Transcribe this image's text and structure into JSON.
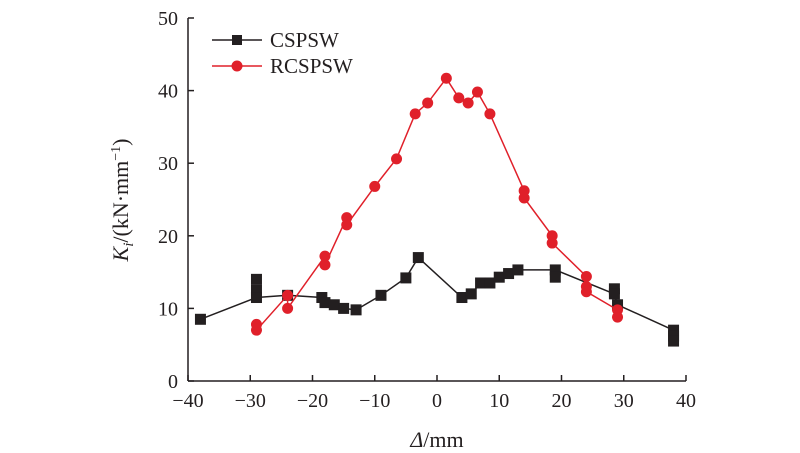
{
  "chart_data": {
    "type": "line",
    "title": "",
    "xlabel_parts": {
      "symbol": "Δ",
      "unit": "/mm"
    },
    "ylabel_parts": {
      "symbol": "K",
      "subscript": "i",
      "unit_before": "/(kN·mm",
      "superscript": "−1",
      "unit_after": ")"
    },
    "xlim": [
      -40,
      40
    ],
    "ylim": [
      0,
      50
    ],
    "xticks": [
      -40,
      -30,
      -20,
      -10,
      0,
      10,
      20,
      30,
      40
    ],
    "xtick_labels": [
      "−40",
      "−30",
      "−20",
      "−10",
      "0",
      "10",
      "20",
      "30",
      "40"
    ],
    "yticks": [
      0,
      10,
      20,
      30,
      40,
      50
    ],
    "ytick_labels": [
      "0",
      "10",
      "20",
      "30",
      "40",
      "50"
    ],
    "grid": false,
    "legend_position": "top-left",
    "series": [
      {
        "name": "CSPSW",
        "color": "#231f20",
        "marker": "square",
        "x": [
          -38.0,
          -29.0,
          -29.0,
          -29.0,
          -24.0,
          -18.5,
          -18.0,
          -16.5,
          -15.0,
          -13.0,
          -9.0,
          -5.0,
          -3.0,
          4.0,
          5.5,
          7.0,
          8.5,
          10.0,
          11.5,
          13.0,
          19.0,
          19.0,
          28.5,
          28.5,
          29.0,
          38.0,
          38.0,
          38.0
        ],
        "y": [
          8.5,
          14.0,
          12.5,
          11.5,
          11.8,
          11.5,
          10.8,
          10.5,
          10.0,
          9.8,
          11.8,
          14.2,
          17.0,
          11.5,
          12.0,
          13.5,
          13.5,
          14.3,
          14.8,
          15.3,
          15.3,
          14.3,
          12.7,
          12.0,
          10.5,
          7.0,
          6.2,
          5.5
        ],
        "line_order": [
          0,
          3,
          4,
          5,
          6,
          7,
          8,
          9,
          10,
          11,
          12,
          13,
          14,
          15,
          16,
          17,
          18,
          19,
          20,
          23,
          24,
          25
        ]
      },
      {
        "name": "RCSPSW",
        "color": "#e0202a",
        "marker": "circle",
        "x": [
          -29.0,
          -29.0,
          -24.0,
          -24.0,
          -18.0,
          -18.0,
          -14.5,
          -14.5,
          -10.0,
          -6.5,
          -3.5,
          -1.5,
          1.5,
          3.5,
          5.0,
          6.5,
          8.5,
          14.0,
          14.0,
          18.5,
          18.5,
          24.0,
          24.0,
          24.0,
          29.0,
          29.0
        ],
        "y": [
          7.8,
          7.0,
          11.8,
          10.0,
          17.2,
          16.0,
          22.5,
          21.5,
          26.8,
          30.6,
          36.8,
          38.3,
          41.7,
          39.0,
          38.3,
          39.8,
          36.8,
          26.2,
          25.2,
          20.0,
          19.0,
          14.4,
          13.0,
          12.3,
          9.8,
          8.8
        ]
      }
    ]
  }
}
